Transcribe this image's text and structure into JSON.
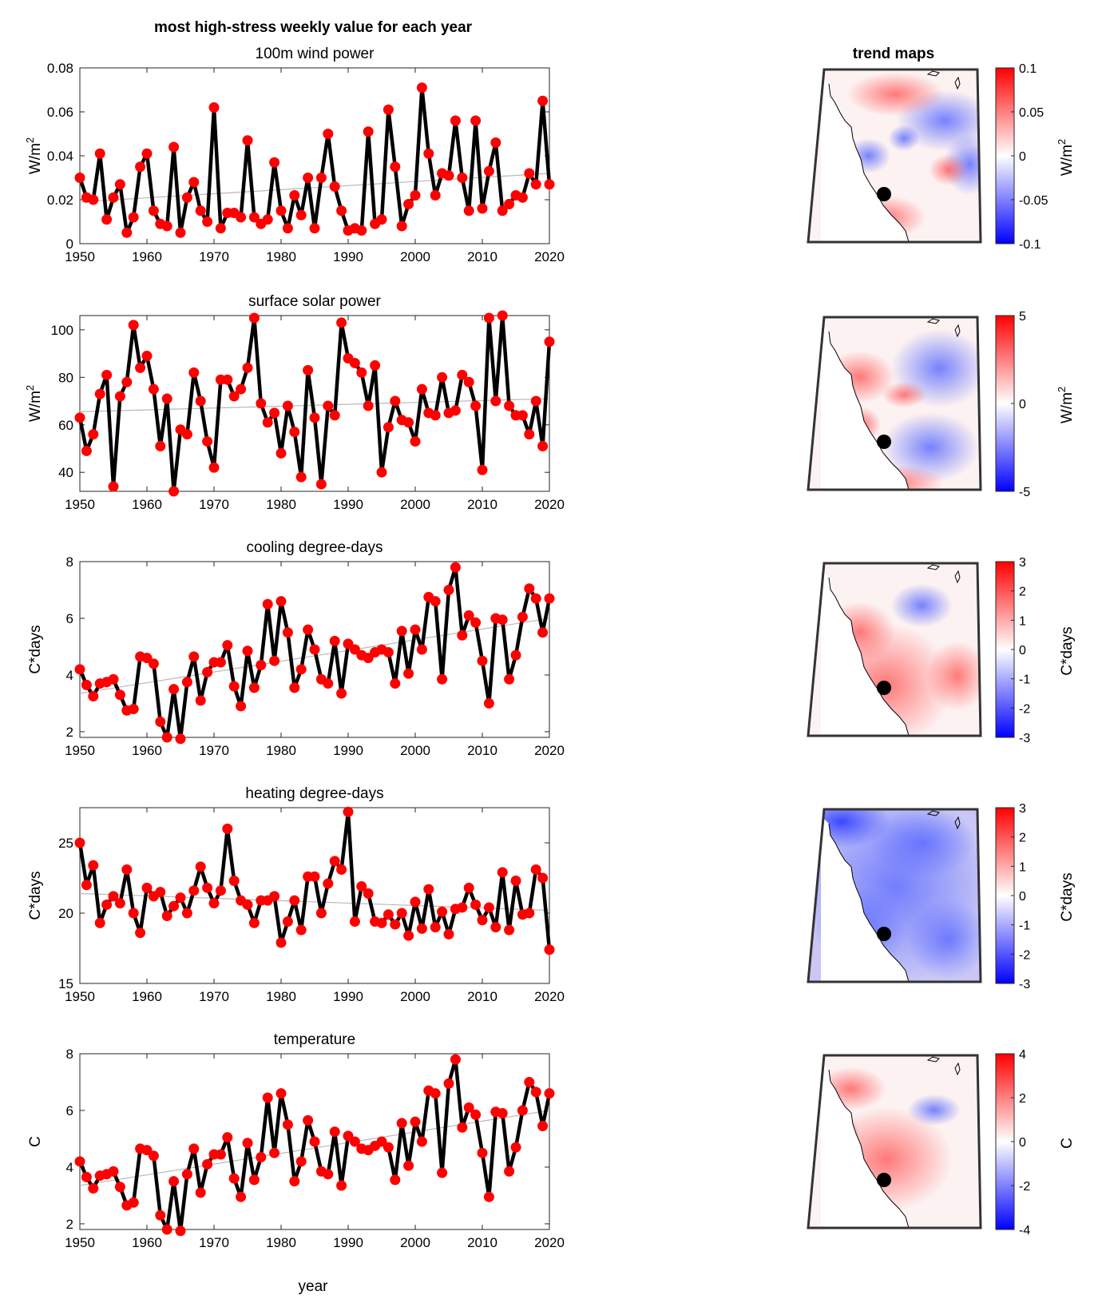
{
  "figure_title": "most high-stress weekly value for each year",
  "maps_title": "trend maps",
  "xlabel": "year",
  "chart_data": [
    {
      "type": "line",
      "title": "100m wind power",
      "ylabel": "W/m²",
      "ylim": [
        0,
        0.08
      ],
      "yticks": [
        0,
        0.02,
        0.04,
        0.06,
        0.08
      ],
      "ytick_labels": [
        "0",
        "0.02",
        "0.04",
        "0.06",
        "0.08"
      ],
      "xlim": [
        1950,
        2020
      ],
      "xticks": [
        1950,
        1960,
        1970,
        1980,
        1990,
        2000,
        2010,
        2020
      ],
      "xtick_labels": [
        "1950",
        "1960",
        "1970",
        "1980",
        "1990",
        "2000",
        "2010",
        "2020"
      ],
      "x_start": 1950,
      "values": [
        0.03,
        0.021,
        0.02,
        0.041,
        0.011,
        0.021,
        0.027,
        0.005,
        0.012,
        0.035,
        0.041,
        0.015,
        0.009,
        0.008,
        0.044,
        0.005,
        0.021,
        0.028,
        0.015,
        0.01,
        0.062,
        0.007,
        0.014,
        0.014,
        0.012,
        0.047,
        0.012,
        0.009,
        0.011,
        0.037,
        0.015,
        0.007,
        0.022,
        0.013,
        0.03,
        0.007,
        0.03,
        0.05,
        0.026,
        0.015,
        0.006,
        0.007,
        0.006,
        0.051,
        0.009,
        0.011,
        0.061,
        0.035,
        0.008,
        0.018,
        0.022,
        0.071,
        0.041,
        0.022,
        0.032,
        0.031,
        0.056,
        0.03,
        0.015,
        0.056,
        0.016,
        0.033,
        0.046,
        0.015,
        0.018,
        0.022,
        0.021,
        0.032,
        0.027,
        0.065,
        0.027
      ],
      "trend": [
        0.019,
        0.032
      ],
      "colorbar": {
        "label": "W/m²",
        "range": [
          -0.1,
          0.1
        ],
        "ticks": [
          0.1,
          0.05,
          0,
          -0.05,
          -0.1
        ],
        "tick_labels": [
          "0.1",
          "0.05",
          "0",
          "-0.05",
          "-0.1"
        ]
      },
      "map_pattern": "mixed-blue-east"
    },
    {
      "type": "line",
      "title": "surface solar power",
      "ylabel": "W/m²",
      "ylim": [
        32,
        106
      ],
      "yticks": [
        40,
        60,
        80,
        100
      ],
      "ytick_labels": [
        "40",
        "60",
        "80",
        "100"
      ],
      "xlim": [
        1950,
        2020
      ],
      "xticks": [
        1950,
        1960,
        1970,
        1980,
        1990,
        2000,
        2010,
        2020
      ],
      "xtick_labels": [
        "1950",
        "1960",
        "1970",
        "1980",
        "1990",
        "2000",
        "2010",
        "2020"
      ],
      "x_start": 1950,
      "values": [
        63,
        49,
        56,
        73,
        81,
        34,
        72,
        78,
        102,
        84,
        89,
        75,
        51,
        71,
        32,
        58,
        56,
        82,
        70,
        53,
        42,
        79,
        79,
        72,
        75,
        84,
        105,
        69,
        61,
        65,
        48,
        68,
        57,
        38,
        83,
        63,
        35,
        68,
        64,
        103,
        88,
        86,
        82,
        68,
        85,
        40,
        59,
        70,
        62,
        61,
        53,
        75,
        65,
        64,
        80,
        65,
        66,
        81,
        78,
        68,
        41,
        105,
        70,
        106,
        68,
        64,
        64,
        56,
        70,
        51,
        95
      ],
      "trend": [
        65.5,
        71
      ],
      "colorbar": {
        "label": "W/m²",
        "range": [
          -5,
          5
        ],
        "ticks": [
          5,
          0,
          -5
        ],
        "tick_labels": [
          "5",
          "0",
          "-5"
        ]
      },
      "map_pattern": "mixed-red-coast"
    },
    {
      "type": "line",
      "title": "cooling degree-days",
      "ylabel": "C*days",
      "ylim": [
        1.8,
        8
      ],
      "yticks": [
        2,
        4,
        6,
        8
      ],
      "ytick_labels": [
        "2",
        "4",
        "6",
        "8"
      ],
      "xlim": [
        1950,
        2020
      ],
      "xticks": [
        1950,
        1960,
        1970,
        1980,
        1990,
        2000,
        2010,
        2020
      ],
      "xtick_labels": [
        "1950",
        "1960",
        "1970",
        "1980",
        "1990",
        "2000",
        "2010",
        "2020"
      ],
      "x_start": 1950,
      "values": [
        4.2,
        3.65,
        3.25,
        3.7,
        3.75,
        3.85,
        3.3,
        2.75,
        2.8,
        4.65,
        4.6,
        4.4,
        2.35,
        1.8,
        3.5,
        1.75,
        3.75,
        4.65,
        3.1,
        4.1,
        4.45,
        4.45,
        5.05,
        3.6,
        2.9,
        4.85,
        3.55,
        4.35,
        6.5,
        4.5,
        6.6,
        5.5,
        3.55,
        4.2,
        5.6,
        4.9,
        3.85,
        3.7,
        5.2,
        3.35,
        5.1,
        4.9,
        4.7,
        4.6,
        4.8,
        4.9,
        4.8,
        3.7,
        5.55,
        4.05,
        5.6,
        4.9,
        6.75,
        6.6,
        3.85,
        7.0,
        7.8,
        5.4,
        6.1,
        5.85,
        4.5,
        3.0,
        6.0,
        5.95,
        3.85,
        4.7,
        6.05,
        7.05,
        6.7,
        5.5,
        6.7
      ],
      "trend": [
        3.35,
        6.0
      ],
      "colorbar": {
        "label": "C*days",
        "range": [
          -3,
          3
        ],
        "ticks": [
          3,
          2,
          1,
          0,
          -1,
          -2,
          -3
        ],
        "tick_labels": [
          "3",
          "2",
          "1",
          "0",
          "-1",
          "-2",
          "-3"
        ]
      },
      "map_pattern": "red-south"
    },
    {
      "type": "line",
      "title": "heating degree-days",
      "ylabel": "C*days",
      "ylim": [
        15,
        27.5
      ],
      "yticks": [
        15,
        20,
        25
      ],
      "ytick_labels": [
        "15",
        "20",
        "25"
      ],
      "xlim": [
        1950,
        2020
      ],
      "xticks": [
        1950,
        1960,
        1970,
        1980,
        1990,
        2000,
        2010,
        2020
      ],
      "xtick_labels": [
        "1950",
        "1960",
        "1970",
        "1980",
        "1990",
        "2000",
        "2010",
        "2020"
      ],
      "x_start": 1950,
      "values": [
        25.0,
        22.0,
        23.4,
        19.3,
        20.6,
        21.2,
        20.7,
        23.1,
        20.0,
        18.6,
        21.8,
        21.2,
        21.5,
        19.8,
        20.5,
        21.1,
        20.0,
        21.6,
        23.3,
        21.8,
        20.7,
        21.6,
        26.0,
        22.3,
        20.9,
        20.6,
        19.3,
        20.9,
        20.9,
        21.2,
        17.9,
        19.4,
        20.9,
        18.8,
        22.6,
        22.6,
        20.0,
        22.1,
        23.7,
        23.1,
        27.2,
        19.4,
        21.9,
        21.4,
        19.4,
        19.3,
        19.9,
        19.2,
        20.0,
        18.4,
        20.8,
        18.9,
        21.7,
        19.0,
        20.1,
        18.5,
        20.3,
        20.4,
        21.8,
        20.6,
        19.5,
        20.4,
        19.0,
        22.9,
        18.8,
        22.3,
        19.9,
        20.0,
        23.1,
        22.5,
        17.4
      ],
      "trend": [
        21.4,
        20.2
      ],
      "colorbar": {
        "label": "C*days",
        "range": [
          -3,
          3
        ],
        "ticks": [
          3,
          2,
          1,
          0,
          -1,
          -2,
          -3
        ],
        "tick_labels": [
          "3",
          "2",
          "1",
          "0",
          "-1",
          "-2",
          "-3"
        ]
      },
      "map_pattern": "blue"
    },
    {
      "type": "line",
      "title": "temperature",
      "ylabel": "C",
      "ylim": [
        1.8,
        8
      ],
      "yticks": [
        2,
        4,
        6,
        8
      ],
      "ytick_labels": [
        "2",
        "4",
        "6",
        "8"
      ],
      "xlim": [
        1950,
        2020
      ],
      "xticks": [
        1950,
        1960,
        1970,
        1980,
        1990,
        2000,
        2010,
        2020
      ],
      "xtick_labels": [
        "1950",
        "1960",
        "1970",
        "1980",
        "1990",
        "2000",
        "2010",
        "2020"
      ],
      "x_start": 1950,
      "values": [
        4.2,
        3.65,
        3.25,
        3.7,
        3.75,
        3.85,
        3.3,
        2.65,
        2.75,
        4.65,
        4.6,
        4.4,
        2.3,
        1.8,
        3.5,
        1.75,
        3.75,
        4.65,
        3.1,
        4.1,
        4.45,
        4.45,
        5.05,
        3.6,
        2.95,
        4.85,
        3.55,
        4.35,
        6.45,
        4.5,
        6.6,
        5.5,
        3.5,
        4.2,
        5.65,
        4.9,
        3.85,
        3.75,
        5.25,
        3.35,
        5.1,
        4.9,
        4.65,
        4.6,
        4.75,
        4.9,
        4.7,
        3.55,
        5.55,
        4.05,
        5.6,
        4.9,
        6.7,
        6.6,
        3.8,
        6.95,
        7.8,
        5.4,
        6.1,
        5.85,
        4.5,
        2.95,
        5.95,
        5.9,
        3.85,
        4.7,
        6.0,
        7.0,
        6.65,
        5.45,
        6.6
      ],
      "trend": [
        3.35,
        6.0
      ],
      "colorbar": {
        "label": "C",
        "range": [
          -4,
          4
        ],
        "ticks": [
          4,
          2,
          0,
          -2,
          -4
        ],
        "tick_labels": [
          "4",
          "2",
          "0",
          "-2",
          "-4"
        ]
      },
      "map_pattern": "light-red"
    }
  ]
}
